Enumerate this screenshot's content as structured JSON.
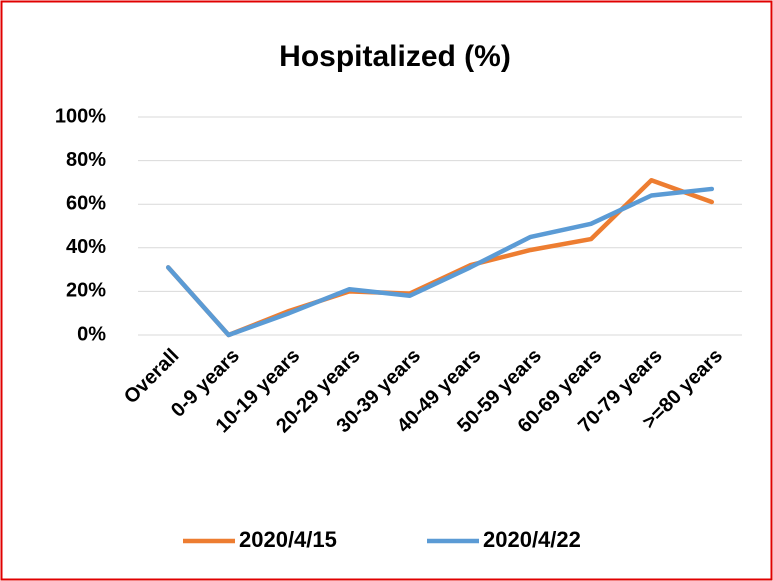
{
  "chart_data": {
    "type": "line",
    "title": "Hospitalized (%)",
    "categories": [
      "Overall",
      "0-9 years",
      "10-19 years",
      "20-29 years",
      "30-39 years",
      "40-49 years",
      "50-59 years",
      "60-69 years",
      "70-79 years",
      ">=80 years"
    ],
    "series": [
      {
        "name": "2020/4/15",
        "color": "#ed7d31",
        "values": [
          31,
          0,
          11,
          20,
          19,
          32,
          39,
          44,
          71,
          61
        ]
      },
      {
        "name": "2020/4/22",
        "color": "#5b9bd5",
        "values": [
          31,
          0,
          10,
          21,
          18,
          31,
          45,
          51,
          64,
          67
        ]
      }
    ],
    "ylim": [
      0,
      100
    ],
    "yticks": [
      {
        "value": 0,
        "label": "0%"
      },
      {
        "value": 20,
        "label": "20%"
      },
      {
        "value": 40,
        "label": "40%"
      },
      {
        "value": 60,
        "label": "60%"
      },
      {
        "value": 80,
        "label": "80%"
      },
      {
        "value": 100,
        "label": "100%"
      }
    ],
    "grid": true,
    "legend": "bottom"
  }
}
